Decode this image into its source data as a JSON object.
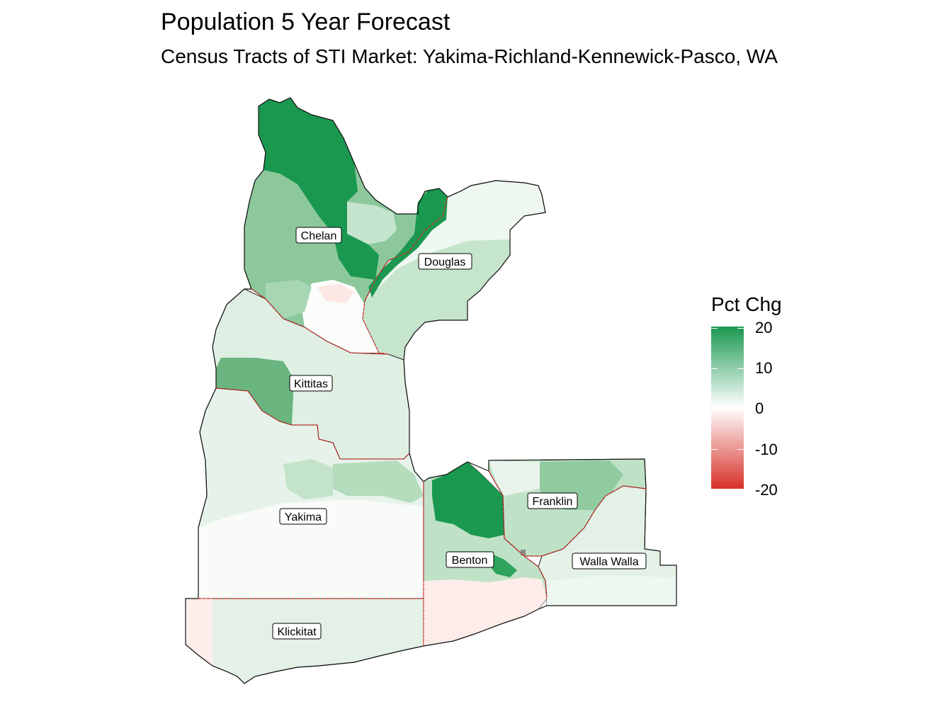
{
  "title": "Population 5 Year Forecast",
  "subtitle": "Census Tracts of STI Market: Yakima-Richland-Kennewick-Pasco, WA",
  "legend": {
    "title": "Pct Chg",
    "ticks": [
      "20",
      "10",
      "0",
      "-10",
      "-20"
    ],
    "low_color": "#d73027",
    "mid_color": "#ffffff",
    "high_color": "#1a9850"
  },
  "counties": {
    "chelan": "Chelan",
    "douglas": "Douglas",
    "kittitas": "Kittitas",
    "yakima": "Yakima",
    "benton": "Benton",
    "franklin": "Franklin",
    "walla_walla": "Walla Walla",
    "klickitat": "Klickitat"
  },
  "boundary_color": "#e8261f"
}
